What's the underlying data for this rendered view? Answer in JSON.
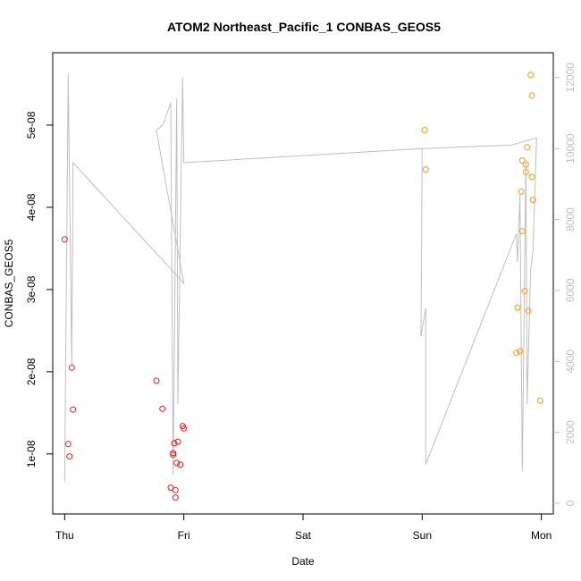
{
  "chart_data": {
    "type": "scatter",
    "title": "ATOM2 Northeast_Pacific_1 CONBAS_GEOS5",
    "xlabel": "Date",
    "ylabel": "CONBAS_GEOS5",
    "x_ticks": [
      {
        "label": "Thu",
        "day": 0
      },
      {
        "label": "Fri",
        "day": 1
      },
      {
        "label": "Sat",
        "day": 2
      },
      {
        "label": "Sun",
        "day": 3
      },
      {
        "label": "Mon",
        "day": 4
      }
    ],
    "xlim": [
      -0.1,
      4.1
    ],
    "ylim": [
      2.7e-09,
      5.88e-08
    ],
    "y_ticks": [
      {
        "label": "1e-08",
        "value": 1e-08
      },
      {
        "label": "2e-08",
        "value": 2e-08
      },
      {
        "label": "3e-08",
        "value": 3e-08
      },
      {
        "label": "4e-08",
        "value": 4e-08
      },
      {
        "label": "5e-08",
        "value": 5e-08
      }
    ],
    "y2lim": [
      -300,
      12700
    ],
    "y2_ticks": [
      0,
      2000,
      4000,
      6000,
      8000,
      10000,
      12000
    ],
    "y2_color": "#c0c0c0",
    "secondary_line": {
      "color": "#bfbfbf",
      "points": [
        [
          0.0,
          600
        ],
        [
          0.03,
          12100
        ],
        [
          0.06,
          3900
        ],
        [
          0.07,
          9600
        ],
        [
          1.0,
          6200
        ],
        [
          0.77,
          10500
        ],
        [
          0.83,
          10700
        ],
        [
          0.89,
          11300
        ],
        [
          0.91,
          800
        ],
        [
          0.94,
          11400
        ],
        [
          0.95,
          2800
        ],
        [
          0.99,
          12000
        ],
        [
          1.0,
          9600
        ],
        [
          3.0,
          10000
        ],
        [
          2.99,
          4700
        ],
        [
          3.03,
          5500
        ],
        [
          3.03,
          1100
        ],
        [
          3.79,
          7600
        ],
        [
          3.8,
          6800
        ],
        [
          3.82,
          8700
        ],
        [
          3.84,
          900
        ],
        [
          3.87,
          9600
        ],
        [
          3.88,
          2800
        ],
        [
          3.91,
          6600
        ],
        [
          3.93,
          7100
        ],
        [
          3.96,
          10300
        ],
        [
          3.75,
          10100
        ],
        [
          3.0,
          10000
        ]
      ]
    },
    "series": [
      {
        "color": "#e31a1c",
        "points": [
          [
            0.0,
            3.61e-08
          ],
          [
            0.03,
            1.12e-08
          ],
          [
            0.04,
            9.7e-09
          ],
          [
            0.06,
            2.05e-08
          ],
          [
            0.07,
            1.54e-08
          ],
          [
            0.77,
            1.89e-08
          ],
          [
            0.82,
            1.55e-08
          ],
          [
            0.89,
            5.9e-09
          ],
          [
            0.91,
            1.01e-08
          ],
          [
            0.91,
            9.9e-09
          ],
          [
            0.92,
            1.13e-08
          ],
          [
            0.93,
            4.7e-09
          ],
          [
            0.93,
            5.6e-09
          ],
          [
            0.94,
            8.9e-09
          ],
          [
            0.95,
            1.15e-08
          ],
          [
            0.97,
            8.7e-09
          ],
          [
            0.99,
            1.34e-08
          ],
          [
            1.0,
            1.31e-08
          ]
        ]
      },
      {
        "color": "#ff9900",
        "points": [
          [
            3.02,
            4.94e-08
          ],
          [
            3.03,
            4.46e-08
          ],
          [
            3.79,
            2.23e-08
          ],
          [
            3.8,
            2.78e-08
          ],
          [
            3.82,
            2.25e-08
          ],
          [
            3.83,
            4.19e-08
          ],
          [
            3.84,
            4.57e-08
          ],
          [
            3.84,
            3.71e-08
          ],
          [
            3.86,
            2.98e-08
          ],
          [
            3.87,
            4.43e-08
          ],
          [
            3.87,
            4.52e-08
          ],
          [
            3.88,
            4.73e-08
          ],
          [
            3.89,
            2.74e-08
          ],
          [
            3.91,
            5.61e-08
          ],
          [
            3.92,
            5.36e-08
          ],
          [
            3.92,
            4.37e-08
          ],
          [
            3.93,
            4.09e-08
          ],
          [
            3.99,
            1.65e-08
          ]
        ]
      }
    ]
  }
}
